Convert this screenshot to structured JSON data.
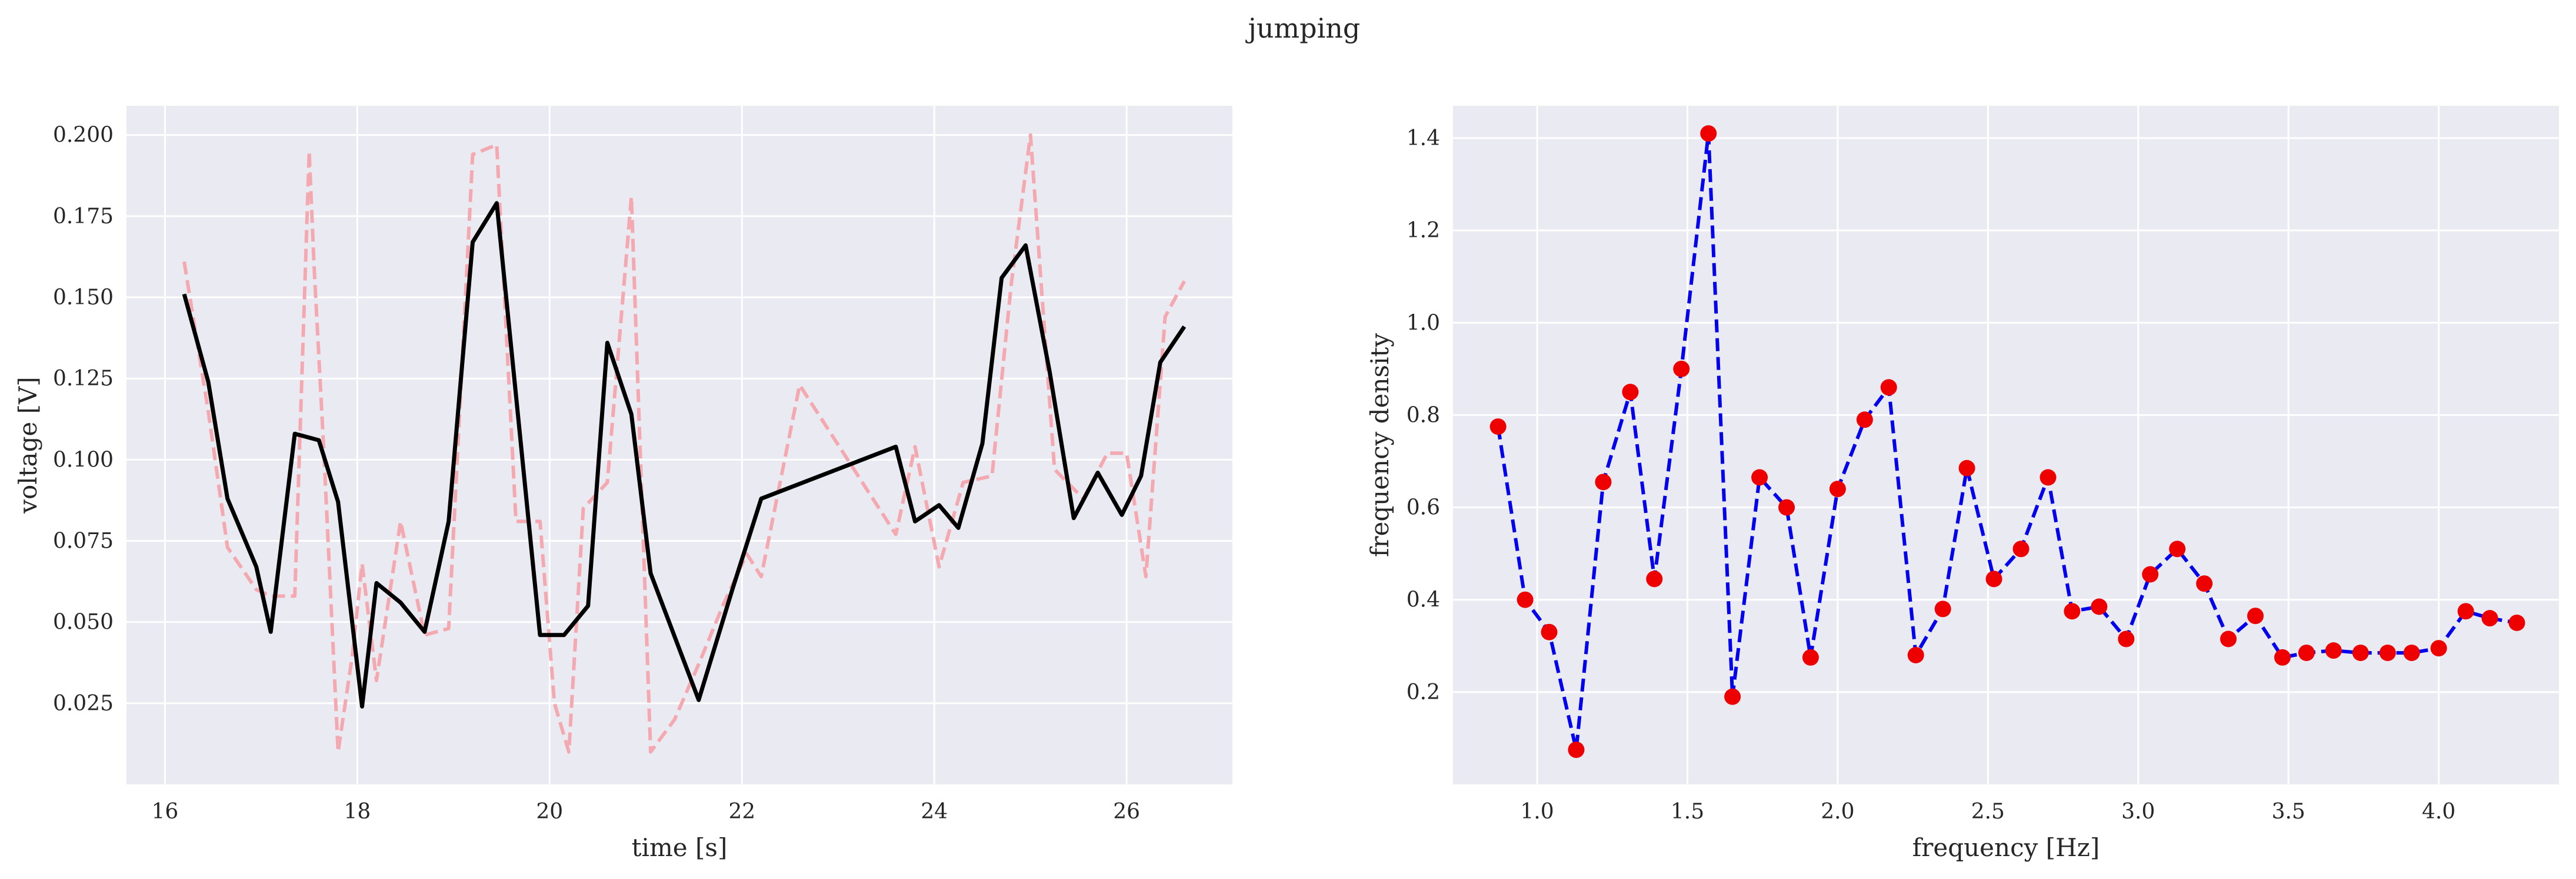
{
  "suptitle": "jumping",
  "colors": {
    "background": "#eaeaf2",
    "grid": "#ffffff",
    "raw": "#f4a9b0",
    "smoothed": "#000000",
    "psd_line": "#0000ee",
    "psd_marker": "#ee0000"
  },
  "chart_data": [
    {
      "type": "line",
      "xlabel": "time [s]",
      "ylabel": "voltage [V]",
      "xlim": [
        15.6,
        27.1
      ],
      "ylim": [
        0.0,
        0.209
      ],
      "xticks": [
        16,
        18,
        20,
        22,
        24,
        26
      ],
      "xtick_labels": [
        "16",
        "18",
        "20",
        "22",
        "24",
        "26"
      ],
      "yticks": [
        0.025,
        0.05,
        0.075,
        0.1,
        0.125,
        0.15,
        0.175,
        0.2
      ],
      "ytick_labels": [
        "0.025",
        "0.050",
        "0.075",
        "0.100",
        "0.125",
        "0.150",
        "0.175",
        "0.200"
      ],
      "grid": true,
      "series": [
        {
          "style": "dashed",
          "color": "#f4a9b0",
          "x": [
            16.2,
            16.45,
            16.65,
            16.95,
            17.1,
            17.35,
            17.5,
            17.55,
            17.65,
            17.8,
            17.95,
            18.05,
            18.2,
            18.45,
            18.7,
            18.95,
            19.2,
            19.45,
            19.65,
            19.9,
            20.05,
            20.2,
            20.35,
            20.6,
            20.85,
            21.05,
            21.3,
            21.55,
            21.8,
            22.05,
            22.2,
            22.6,
            23.1,
            23.6,
            23.8,
            24.05,
            24.3,
            24.6,
            24.8,
            25.0,
            25.25,
            25.55,
            25.8,
            26.0,
            26.2,
            26.4,
            26.6
          ],
          "y": [
            0.161,
            0.115,
            0.073,
            0.06,
            0.058,
            0.058,
            0.195,
            0.16,
            0.104,
            0.01,
            0.04,
            0.068,
            0.032,
            0.081,
            0.046,
            0.048,
            0.194,
            0.197,
            0.081,
            0.081,
            0.025,
            0.01,
            0.085,
            0.093,
            0.181,
            0.01,
            0.02,
            0.037,
            0.055,
            0.071,
            0.064,
            0.123,
            0.1,
            0.077,
            0.104,
            0.067,
            0.093,
            0.095,
            0.154,
            0.2,
            0.097,
            0.088,
            0.102,
            0.102,
            0.064,
            0.144,
            0.155
          ]
        },
        {
          "style": "solid",
          "color": "#000000",
          "x": [
            16.2,
            16.45,
            16.65,
            16.95,
            17.1,
            17.35,
            17.6,
            17.8,
            18.05,
            18.2,
            18.45,
            18.7,
            18.95,
            19.2,
            19.45,
            19.9,
            20.15,
            20.4,
            20.6,
            20.85,
            21.05,
            21.55,
            21.9,
            22.2,
            22.9,
            23.6,
            23.8,
            24.05,
            24.25,
            24.5,
            24.7,
            24.95,
            25.2,
            25.45,
            25.7,
            25.95,
            26.15,
            26.35,
            26.6
          ],
          "y": [
            0.151,
            0.124,
            0.088,
            0.067,
            0.047,
            0.108,
            0.106,
            0.087,
            0.024,
            0.062,
            0.056,
            0.047,
            0.081,
            0.167,
            0.179,
            0.046,
            0.046,
            0.055,
            0.136,
            0.114,
            0.065,
            0.026,
            0.06,
            0.088,
            0.096,
            0.104,
            0.081,
            0.086,
            0.079,
            0.105,
            0.156,
            0.166,
            0.127,
            0.082,
            0.096,
            0.083,
            0.095,
            0.13,
            0.141
          ]
        }
      ]
    },
    {
      "type": "line",
      "xlabel": "frequency [Hz]",
      "ylabel": "frequency density",
      "xlim": [
        0.72,
        4.4
      ],
      "ylim": [
        0.0,
        1.47
      ],
      "xticks": [
        1.0,
        1.5,
        2.0,
        2.5,
        3.0,
        3.5,
        4.0
      ],
      "xtick_labels": [
        "1.0",
        "1.5",
        "2.0",
        "2.5",
        "3.0",
        "3.5",
        "4.0"
      ],
      "yticks": [
        0.2,
        0.4,
        0.6,
        0.8,
        1.0,
        1.2,
        1.4
      ],
      "ytick_labels": [
        "0.2",
        "0.4",
        "0.6",
        "0.8",
        "1.0",
        "1.2",
        "1.4"
      ],
      "grid": true,
      "series": [
        {
          "style": "dashed-with-markers",
          "color": "#0000ee",
          "marker_color": "#ee0000",
          "x": [
            0.87,
            0.96,
            1.04,
            1.13,
            1.22,
            1.31,
            1.39,
            1.48,
            1.57,
            1.65,
            1.74,
            1.83,
            1.91,
            2.0,
            2.09,
            2.17,
            2.26,
            2.35,
            2.43,
            2.52,
            2.61,
            2.7,
            2.78,
            2.87,
            2.96,
            3.04,
            3.13,
            3.22,
            3.3,
            3.39,
            3.48,
            3.56,
            3.65,
            3.74,
            3.83,
            3.91,
            4.0,
            4.09,
            4.17,
            4.26
          ],
          "y": [
            0.775,
            0.4,
            0.33,
            0.075,
            0.655,
            0.85,
            0.445,
            0.9,
            1.41,
            0.19,
            0.665,
            0.6,
            0.275,
            0.64,
            0.79,
            0.86,
            0.28,
            0.38,
            0.685,
            0.445,
            0.51,
            0.665,
            0.375,
            0.385,
            0.315,
            0.455,
            0.51,
            0.435,
            0.315,
            0.365,
            0.275,
            0.285,
            0.29,
            0.285,
            0.285,
            0.285,
            0.295,
            0.375,
            0.36,
            0.35
          ]
        }
      ]
    }
  ]
}
